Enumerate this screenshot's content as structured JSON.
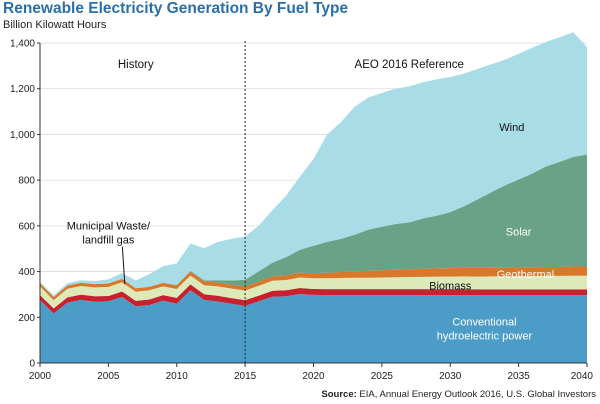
{
  "chart_data": {
    "type": "area",
    "stacked": true,
    "title": "Renewable Electricity Generation By Fuel Type",
    "ylabel": "Billion Kilowatt Hours",
    "xlabel": "",
    "xlim": [
      2000,
      2040
    ],
    "ylim": [
      0,
      1400
    ],
    "x_ticks": [
      2000,
      2005,
      2010,
      2015,
      2020,
      2025,
      2030,
      2035,
      2040
    ],
    "y_ticks": [
      0,
      200,
      400,
      600,
      800,
      1000,
      1200,
      1400
    ],
    "y_tick_labels": [
      "0",
      "200",
      "400",
      "600",
      "800",
      "1,000",
      "1,200",
      "1,400"
    ],
    "divider_year": 2015,
    "regions": [
      {
        "label": "History",
        "x": 2007
      },
      {
        "label": "AEO 2016 Reference",
        "x": 2027
      }
    ],
    "x": [
      2000,
      2001,
      2002,
      2003,
      2004,
      2005,
      2006,
      2007,
      2008,
      2009,
      2010,
      2011,
      2012,
      2013,
      2014,
      2015,
      2016,
      2017,
      2018,
      2019,
      2020,
      2021,
      2022,
      2023,
      2024,
      2025,
      2026,
      2027,
      2028,
      2029,
      2030,
      2031,
      2032,
      2033,
      2034,
      2035,
      2036,
      2037,
      2038,
      2039,
      2040
    ],
    "series": [
      {
        "name": "Conventional hydroelectric power",
        "color": "#4b9cc7",
        "values": [
          275,
          217,
          264,
          276,
          268,
          270,
          289,
          248,
          254,
          273,
          260,
          319,
          276,
          269,
          259,
          250,
          270,
          290,
          292,
          302,
          298,
          297,
          297,
          297,
          297,
          297,
          297,
          297,
          297,
          297,
          297,
          297,
          297,
          297,
          297,
          297,
          297,
          297,
          297,
          297,
          297
        ]
      },
      {
        "name": "Municipal Waste/ landfill gas",
        "color": "#c8202f",
        "values": [
          22,
          22,
          23,
          23,
          24,
          23,
          24,
          24,
          24,
          24,
          25,
          25,
          25,
          25,
          25,
          25,
          25,
          26,
          26,
          26,
          26,
          26,
          26,
          26,
          26,
          26,
          26,
          26,
          26,
          26,
          26,
          26,
          25,
          25,
          25,
          25,
          25,
          25,
          25,
          25,
          25
        ]
      },
      {
        "name": "Biomass",
        "color": "#dde9b8",
        "values": [
          38,
          36,
          38,
          38,
          39,
          40,
          40,
          40,
          40,
          38,
          39,
          39,
          39,
          41,
          42,
          42,
          43,
          44,
          45,
          46,
          47,
          48,
          49,
          50,
          50,
          51,
          52,
          53,
          54,
          55,
          55,
          56,
          56,
          57,
          57,
          58,
          58,
          59,
          59,
          60,
          60
        ]
      },
      {
        "name": "Geothermal",
        "color": "#d9772a",
        "values": [
          14,
          14,
          14,
          14,
          14,
          15,
          15,
          15,
          15,
          15,
          15,
          17,
          17,
          17,
          17,
          17,
          18,
          19,
          20,
          21,
          22,
          24,
          26,
          28,
          30,
          32,
          33,
          34,
          35,
          36,
          37,
          37,
          38,
          38,
          38,
          38,
          39,
          39,
          39,
          40,
          40
        ]
      },
      {
        "name": "Solar",
        "color": "#6aa287",
        "values": [
          0,
          0,
          0,
          0,
          0,
          0,
          0,
          0,
          1,
          1,
          2,
          3,
          5,
          10,
          18,
          30,
          45,
          60,
          80,
          100,
          120,
          135,
          145,
          160,
          180,
          190,
          200,
          205,
          220,
          230,
          245,
          270,
          300,
          330,
          360,
          385,
          410,
          440,
          460,
          480,
          490
        ]
      },
      {
        "name": "Wind",
        "color": "#a8dce6",
        "values": [
          6,
          7,
          10,
          11,
          14,
          18,
          26,
          34,
          55,
          73,
          95,
          120,
          140,
          168,
          182,
          190,
          200,
          230,
          270,
          320,
          380,
          470,
          510,
          560,
          578,
          586,
          592,
          595,
          596,
          597,
          591,
          580,
          570,
          560,
          550,
          550,
          550,
          545,
          545,
          545,
          470
        ]
      }
    ],
    "series_labels": [
      {
        "series": 0,
        "lines": [
          "Conventional",
          "hydroelectric power"
        ],
        "x": 2032.5,
        "y": 150,
        "color": "#ffffff"
      },
      {
        "series": 2,
        "lines": [
          "Biomass"
        ],
        "x": 2030,
        "y": 340,
        "color": "#111111"
      },
      {
        "series": 3,
        "lines": [
          "Geothermal"
        ],
        "x": 2035.5,
        "y": 389,
        "color": "#ffffff"
      },
      {
        "series": 4,
        "lines": [
          "Solar"
        ],
        "x": 2035,
        "y": 575,
        "color": "#ffffff"
      },
      {
        "series": 5,
        "lines": [
          "Wind"
        ],
        "x": 2034.5,
        "y": 1032,
        "color": "#111111"
      },
      {
        "series": 1,
        "lines": [
          "Municipal Waste/",
          "landfill gas"
        ],
        "x": 2005,
        "y": 570,
        "color": "#111111",
        "pointer_to": [
          2006.2,
          345
        ]
      }
    ],
    "grid": "horizontal"
  },
  "source": {
    "label": "Source:",
    "text": "EIA, Annual Energy Outlook 2016, U.S. Global Investors"
  }
}
